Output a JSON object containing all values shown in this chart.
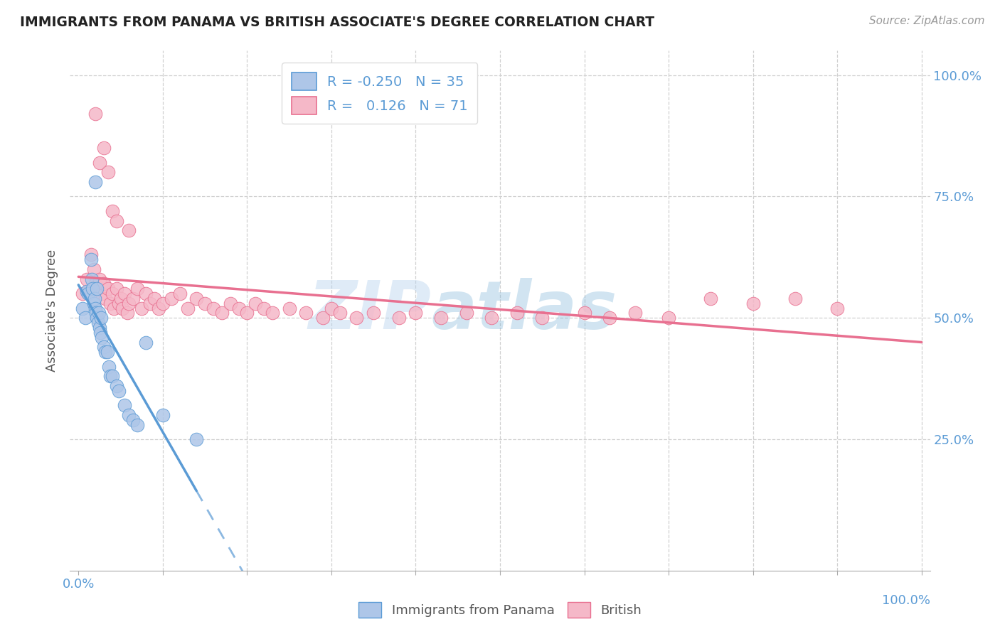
{
  "title": "IMMIGRANTS FROM PANAMA VS BRITISH ASSOCIATE'S DEGREE CORRELATION CHART",
  "source": "Source: ZipAtlas.com",
  "ylabel": "Associate's Degree",
  "y_tick_labels_right": [
    "",
    "25.0%",
    "50.0%",
    "75.0%",
    "100.0%"
  ],
  "y_tick_positions": [
    0.0,
    0.25,
    0.5,
    0.75,
    1.0
  ],
  "x_tick_positions": [
    0.0,
    0.1,
    0.2,
    0.3,
    0.4,
    0.5,
    0.6,
    0.7,
    0.8,
    0.9,
    1.0
  ],
  "xlim": [
    -0.01,
    1.01
  ],
  "ylim": [
    -0.02,
    1.05
  ],
  "panama_color": "#aec6e8",
  "british_color": "#f5b8c8",
  "panama_line_color": "#5b9bd5",
  "british_line_color": "#e87090",
  "R_panama": -0.25,
  "N_panama": 35,
  "R_british": 0.126,
  "N_british": 71,
  "legend_label_panama": "Immigrants from Panama",
  "legend_label_british": "British",
  "watermark_zip": "ZIP",
  "watermark_atlas": "atlas",
  "background_color": "#ffffff",
  "grid_color": "#d0d0d0",
  "title_color": "#222222",
  "tick_color": "#5b9bd5",
  "ylabel_color": "#555555",
  "panama_x": [
    0.005,
    0.008,
    0.01,
    0.012,
    0.015,
    0.016,
    0.017,
    0.018,
    0.019,
    0.02,
    0.021,
    0.022,
    0.022,
    0.023,
    0.024,
    0.025,
    0.026,
    0.027,
    0.028,
    0.03,
    0.032,
    0.034,
    0.036,
    0.038,
    0.04,
    0.045,
    0.048,
    0.055,
    0.06,
    0.065,
    0.07,
    0.08,
    0.1,
    0.14,
    0.02
  ],
  "panama_y": [
    0.52,
    0.5,
    0.555,
    0.55,
    0.62,
    0.58,
    0.56,
    0.53,
    0.54,
    0.52,
    0.51,
    0.5,
    0.56,
    0.49,
    0.51,
    0.48,
    0.47,
    0.5,
    0.46,
    0.44,
    0.43,
    0.43,
    0.4,
    0.38,
    0.38,
    0.36,
    0.35,
    0.32,
    0.3,
    0.29,
    0.28,
    0.45,
    0.3,
    0.25,
    0.78
  ],
  "british_x": [
    0.005,
    0.01,
    0.015,
    0.018,
    0.02,
    0.022,
    0.025,
    0.028,
    0.03,
    0.032,
    0.035,
    0.038,
    0.04,
    0.042,
    0.045,
    0.048,
    0.05,
    0.052,
    0.055,
    0.058,
    0.06,
    0.065,
    0.07,
    0.075,
    0.08,
    0.085,
    0.09,
    0.095,
    0.1,
    0.11,
    0.12,
    0.13,
    0.14,
    0.15,
    0.16,
    0.17,
    0.18,
    0.19,
    0.2,
    0.21,
    0.22,
    0.23,
    0.25,
    0.27,
    0.29,
    0.3,
    0.31,
    0.33,
    0.35,
    0.38,
    0.4,
    0.43,
    0.46,
    0.49,
    0.52,
    0.55,
    0.6,
    0.63,
    0.66,
    0.7,
    0.75,
    0.8,
    0.85,
    0.9,
    0.025,
    0.03,
    0.035,
    0.04,
    0.045,
    0.02,
    0.06
  ],
  "british_y": [
    0.55,
    0.58,
    0.63,
    0.6,
    0.57,
    0.56,
    0.58,
    0.55,
    0.57,
    0.54,
    0.56,
    0.53,
    0.55,
    0.52,
    0.56,
    0.53,
    0.54,
    0.52,
    0.55,
    0.51,
    0.53,
    0.54,
    0.56,
    0.52,
    0.55,
    0.53,
    0.54,
    0.52,
    0.53,
    0.54,
    0.55,
    0.52,
    0.54,
    0.53,
    0.52,
    0.51,
    0.53,
    0.52,
    0.51,
    0.53,
    0.52,
    0.51,
    0.52,
    0.51,
    0.5,
    0.52,
    0.51,
    0.5,
    0.51,
    0.5,
    0.51,
    0.5,
    0.51,
    0.5,
    0.51,
    0.5,
    0.51,
    0.5,
    0.51,
    0.5,
    0.54,
    0.53,
    0.54,
    0.52,
    0.82,
    0.85,
    0.8,
    0.72,
    0.7,
    0.92,
    0.68
  ]
}
